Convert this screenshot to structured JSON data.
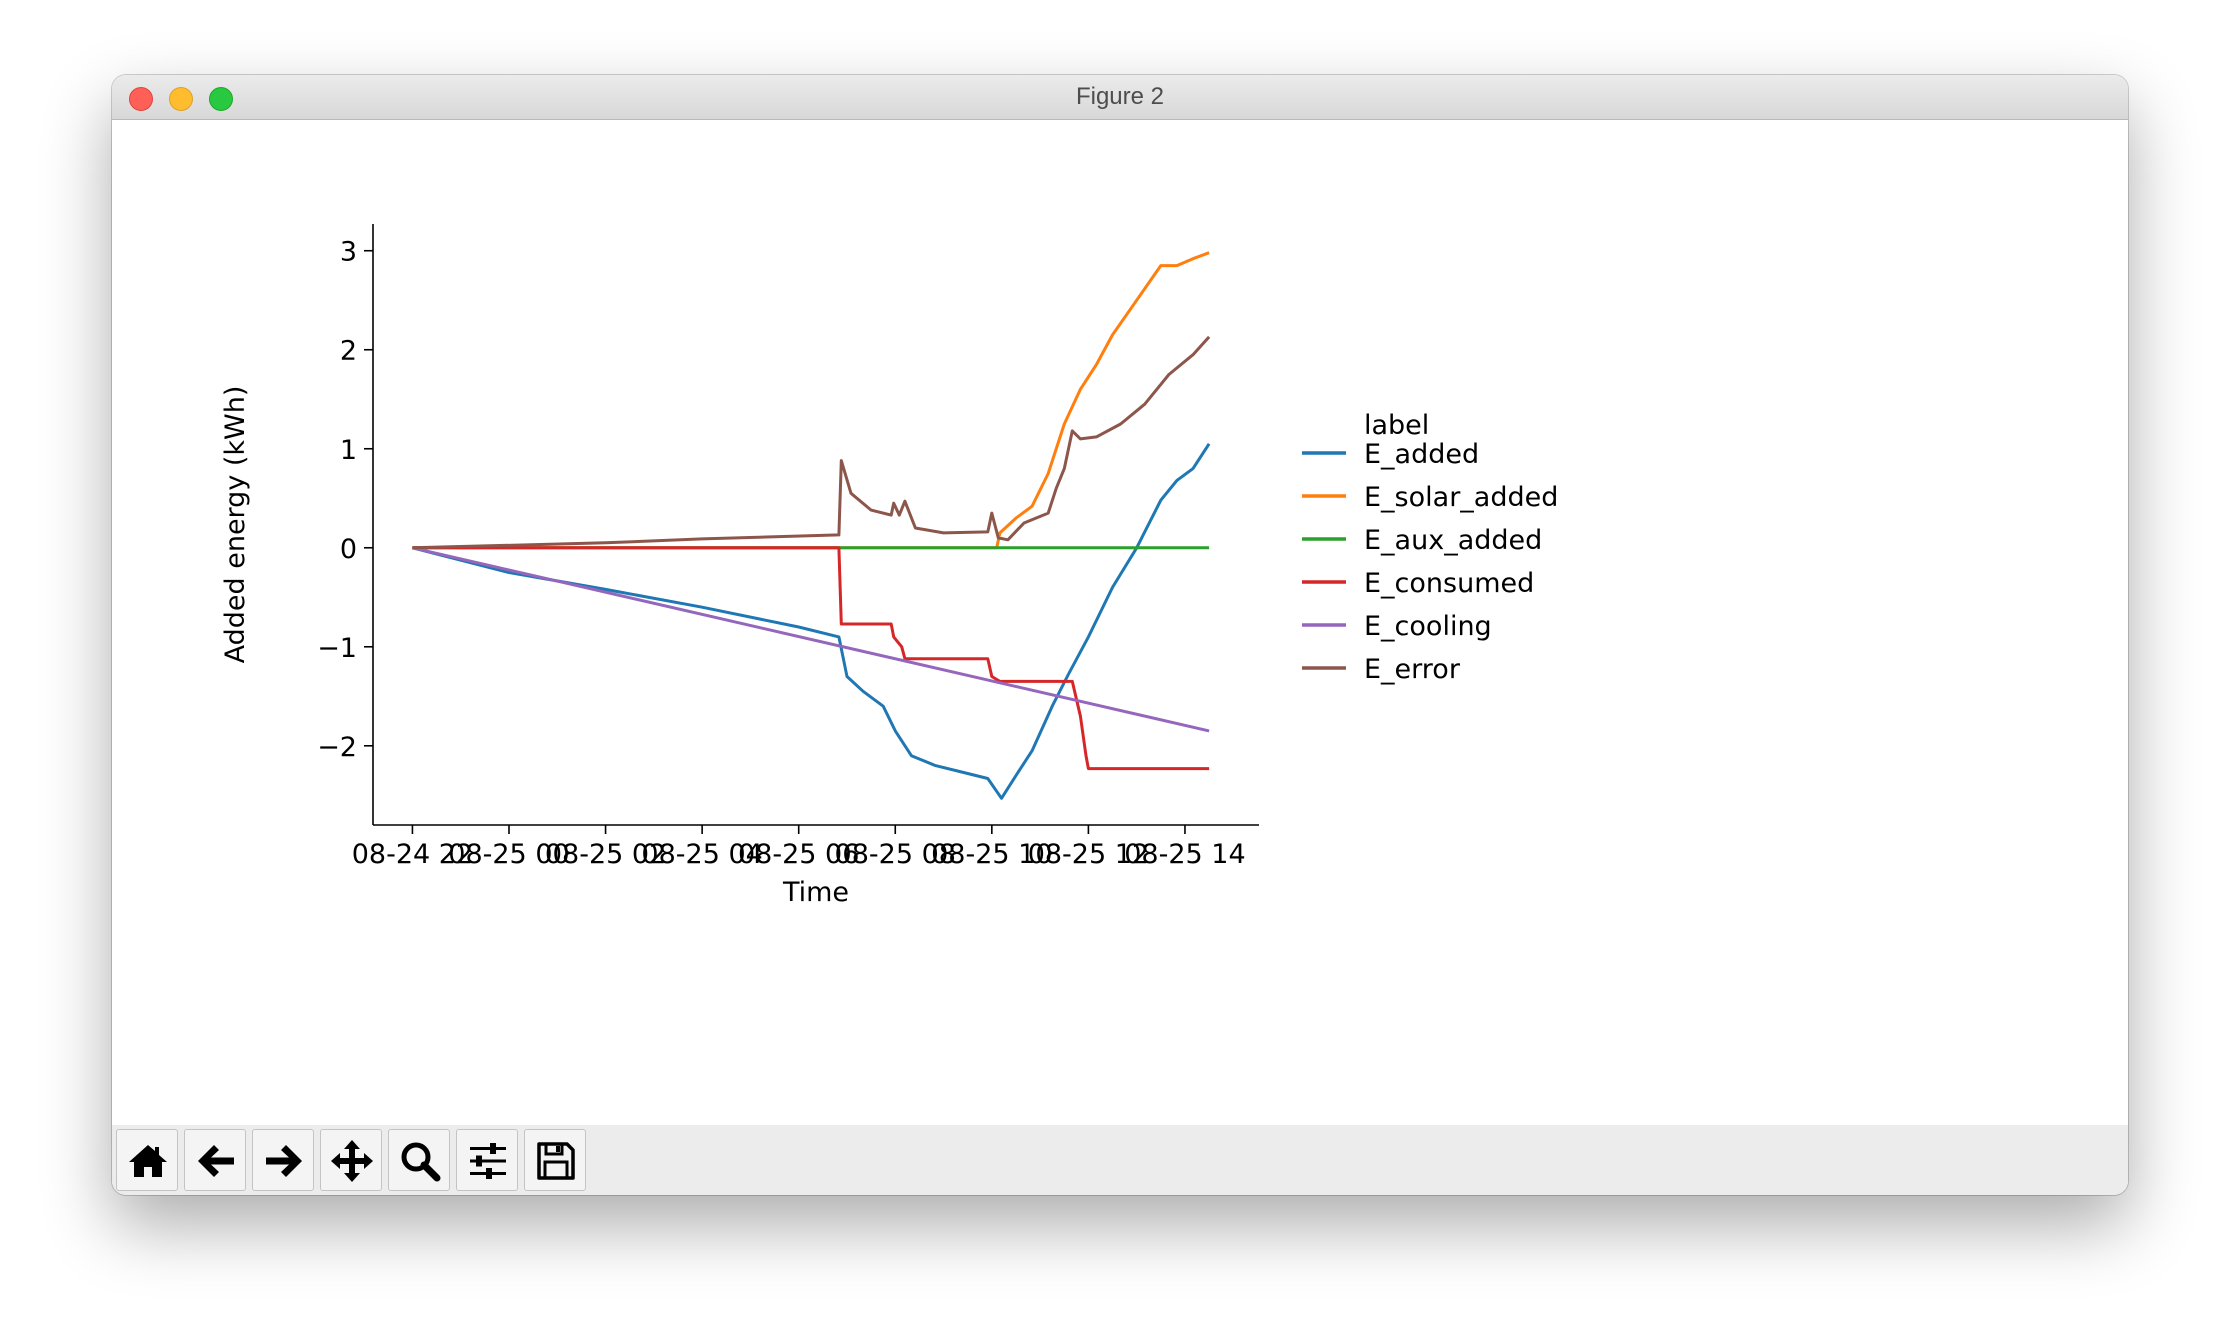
{
  "window": {
    "title": "Figure 2"
  },
  "toolbar": {
    "buttons": [
      {
        "name": "home-button",
        "icon": "home-icon"
      },
      {
        "name": "back-button",
        "icon": "arrow-left-icon"
      },
      {
        "name": "forward-button",
        "icon": "arrow-right-icon"
      },
      {
        "name": "pan-button",
        "icon": "move-icon"
      },
      {
        "name": "zoom-button",
        "icon": "magnifier-icon"
      },
      {
        "name": "configure-subplots-button",
        "icon": "sliders-icon"
      },
      {
        "name": "save-button",
        "icon": "floppy-disk-icon"
      }
    ]
  },
  "chart_data": {
    "type": "line",
    "title": "",
    "xlabel": "Time",
    "ylabel": "Added energy (kWh)",
    "xlim": [
      "2023-08-24 21:11",
      "2023-08-25 15:32"
    ],
    "ylim": [
      -2.8,
      3.27
    ],
    "x_ticks": [
      "08-24 22",
      "08-25 00",
      "08-25 02",
      "08-25 04",
      "08-25 06",
      "08-25 08",
      "08-25 10",
      "08-25 12",
      "08-25 14"
    ],
    "y_ticks": [
      {
        "value": -2,
        "label": "−2"
      },
      {
        "value": -1,
        "label": "−1"
      },
      {
        "value": 0,
        "label": "0"
      },
      {
        "value": 1,
        "label": "1"
      },
      {
        "value": 2,
        "label": "2"
      },
      {
        "value": 3,
        "label": "3"
      }
    ],
    "grid": false,
    "legend": {
      "title": "label",
      "placement": "outside-right"
    },
    "series": [
      {
        "name": "E_added",
        "color": "#1f77b4",
        "points": [
          [
            "2023-08-24 22:00",
            0
          ],
          [
            "2023-08-25 00:00",
            -0.25
          ],
          [
            "2023-08-25 02:00",
            -0.42
          ],
          [
            "2023-08-25 04:00",
            -0.6
          ],
          [
            "2023-08-25 06:00",
            -0.8
          ],
          [
            "2023-08-25 06:50",
            -0.9
          ],
          [
            "2023-08-25 07:00",
            -1.3
          ],
          [
            "2023-08-25 07:20",
            -1.45
          ],
          [
            "2023-08-25 07:45",
            -1.6
          ],
          [
            "2023-08-25 08:00",
            -1.85
          ],
          [
            "2023-08-25 08:20",
            -2.1
          ],
          [
            "2023-08-25 08:50",
            -2.2
          ],
          [
            "2023-08-25 09:30",
            -2.28
          ],
          [
            "2023-08-25 09:55",
            -2.33
          ],
          [
            "2023-08-25 10:12",
            -2.53
          ],
          [
            "2023-08-25 10:30",
            -2.3
          ],
          [
            "2023-08-25 10:50",
            -2.05
          ],
          [
            "2023-08-25 11:15",
            -1.6
          ],
          [
            "2023-08-25 11:35",
            -1.28
          ],
          [
            "2023-08-25 12:00",
            -0.9
          ],
          [
            "2023-08-25 12:30",
            -0.4
          ],
          [
            "2023-08-25 13:00",
            0
          ],
          [
            "2023-08-25 13:30",
            0.48
          ],
          [
            "2023-08-25 13:50",
            0.68
          ],
          [
            "2023-08-25 14:10",
            0.8
          ],
          [
            "2023-08-25 14:30",
            1.05
          ]
        ]
      },
      {
        "name": "E_solar_added",
        "color": "#ff7f0e",
        "points": [
          [
            "2023-08-24 22:00",
            0
          ],
          [
            "2023-08-25 10:06",
            0
          ],
          [
            "2023-08-25 10:10",
            0.15
          ],
          [
            "2023-08-25 10:30",
            0.3
          ],
          [
            "2023-08-25 10:50",
            0.42
          ],
          [
            "2023-08-25 11:10",
            0.75
          ],
          [
            "2023-08-25 11:30",
            1.25
          ],
          [
            "2023-08-25 11:50",
            1.6
          ],
          [
            "2023-08-25 12:10",
            1.85
          ],
          [
            "2023-08-25 12:30",
            2.15
          ],
          [
            "2023-08-25 13:00",
            2.5
          ],
          [
            "2023-08-25 13:30",
            2.85
          ],
          [
            "2023-08-25 13:50",
            2.85
          ],
          [
            "2023-08-25 14:10",
            2.92
          ],
          [
            "2023-08-25 14:30",
            2.98
          ]
        ]
      },
      {
        "name": "E_aux_added",
        "color": "#2ca02c",
        "points": [
          [
            "2023-08-24 22:00",
            0
          ],
          [
            "2023-08-25 14:30",
            0
          ]
        ]
      },
      {
        "name": "E_consumed",
        "color": "#d62728",
        "points": [
          [
            "2023-08-24 22:00",
            0
          ],
          [
            "2023-08-25 06:50",
            0
          ],
          [
            "2023-08-25 06:53",
            -0.77
          ],
          [
            "2023-08-25 07:55",
            -0.77
          ],
          [
            "2023-08-25 07:58",
            -0.9
          ],
          [
            "2023-08-25 08:08",
            -1.0
          ],
          [
            "2023-08-25 08:12",
            -1.12
          ],
          [
            "2023-08-25 09:55",
            -1.12
          ],
          [
            "2023-08-25 10:00",
            -1.3
          ],
          [
            "2023-08-25 10:10",
            -1.35
          ],
          [
            "2023-08-25 11:40",
            -1.35
          ],
          [
            "2023-08-25 11:50",
            -1.7
          ],
          [
            "2023-08-25 11:57",
            -2.1
          ],
          [
            "2023-08-25 12:00",
            -2.23
          ],
          [
            "2023-08-25 14:30",
            -2.23
          ]
        ]
      },
      {
        "name": "E_cooling",
        "color": "#9467bd",
        "points": [
          [
            "2023-08-24 22:00",
            0
          ],
          [
            "2023-08-25 14:30",
            -1.85
          ]
        ]
      },
      {
        "name": "E_error",
        "color": "#8c564b",
        "points": [
          [
            "2023-08-24 22:00",
            0
          ],
          [
            "2023-08-25 02:00",
            0.05
          ],
          [
            "2023-08-25 04:00",
            0.09
          ],
          [
            "2023-08-25 06:50",
            0.13
          ],
          [
            "2023-08-25 06:53",
            0.88
          ],
          [
            "2023-08-25 07:05",
            0.55
          ],
          [
            "2023-08-25 07:30",
            0.38
          ],
          [
            "2023-08-25 07:55",
            0.33
          ],
          [
            "2023-08-25 07:58",
            0.45
          ],
          [
            "2023-08-25 08:05",
            0.33
          ],
          [
            "2023-08-25 08:12",
            0.47
          ],
          [
            "2023-08-25 08:25",
            0.2
          ],
          [
            "2023-08-25 09:00",
            0.15
          ],
          [
            "2023-08-25 09:55",
            0.16
          ],
          [
            "2023-08-25 10:00",
            0.35
          ],
          [
            "2023-08-25 10:08",
            0.1
          ],
          [
            "2023-08-25 10:20",
            0.08
          ],
          [
            "2023-08-25 10:40",
            0.25
          ],
          [
            "2023-08-25 11:10",
            0.35
          ],
          [
            "2023-08-25 11:20",
            0.6
          ],
          [
            "2023-08-25 11:30",
            0.8
          ],
          [
            "2023-08-25 11:40",
            1.18
          ],
          [
            "2023-08-25 11:50",
            1.1
          ],
          [
            "2023-08-25 12:10",
            1.12
          ],
          [
            "2023-08-25 12:40",
            1.25
          ],
          [
            "2023-08-25 13:10",
            1.45
          ],
          [
            "2023-08-25 13:40",
            1.75
          ],
          [
            "2023-08-25 14:10",
            1.95
          ],
          [
            "2023-08-25 14:30",
            2.13
          ]
        ]
      }
    ]
  }
}
